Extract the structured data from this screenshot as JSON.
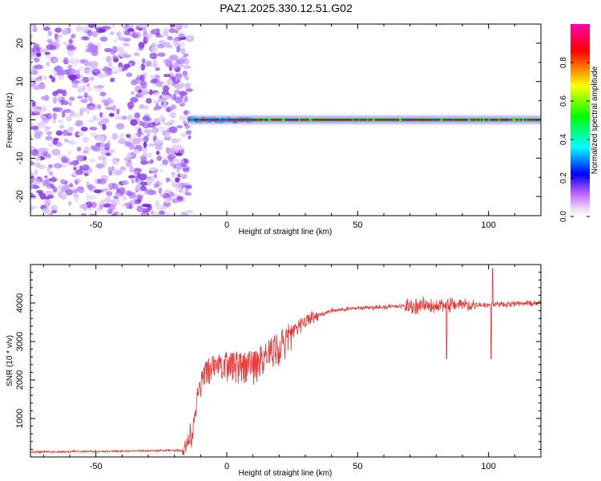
{
  "title": "PAZ1.2025.330.12.51.G02",
  "chart_data": [
    {
      "type": "heatmap",
      "name": "spectrogram",
      "xlabel": "Height of straight line (km)",
      "ylabel": "Frequency (Hz)",
      "xlim": [
        -75,
        120
      ],
      "ylim": [
        -25,
        25
      ],
      "xticks": [
        -50,
        0,
        50,
        100
      ],
      "yticks": [
        -20,
        -10,
        0,
        10,
        20
      ],
      "noise_region_x": [
        -75,
        -15
      ],
      "signal_start_x": -15,
      "signal_frequency": 0,
      "colorbar": {
        "label": "Normalized spectral amplitude",
        "range": [
          0,
          1
        ],
        "ticks": [
          0.0,
          0.2,
          0.4,
          0.6,
          0.8
        ],
        "colormap": [
          "#ffffff",
          "#ff00ff",
          "#0000ff",
          "#00ffff",
          "#00ff00",
          "#ffff00",
          "#ff0000",
          "#ff00aa"
        ]
      }
    },
    {
      "type": "line",
      "name": "snr",
      "xlabel": "Height of straight line (km)",
      "ylabel": "SNR (10 * v/v)",
      "xlim": [
        -75,
        120
      ],
      "ylim": [
        0,
        5000
      ],
      "xticks": [
        -50,
        0,
        50,
        100
      ],
      "yticks": [
        1000,
        2000,
        3000,
        4000
      ],
      "color": "#ee3333",
      "profile": [
        {
          "x": -75,
          "y": 130
        },
        {
          "x": -40,
          "y": 150
        },
        {
          "x": -17,
          "y": 170
        },
        {
          "x": -13,
          "y": 600
        },
        {
          "x": -11,
          "y": 1700
        },
        {
          "x": -8,
          "y": 2300
        },
        {
          "x": 0,
          "y": 2500
        },
        {
          "x": 10,
          "y": 2400
        },
        {
          "x": 15,
          "y": 2700
        },
        {
          "x": 20,
          "y": 2900
        },
        {
          "x": 25,
          "y": 3300
        },
        {
          "x": 30,
          "y": 3550
        },
        {
          "x": 40,
          "y": 3800
        },
        {
          "x": 50,
          "y": 3870
        },
        {
          "x": 60,
          "y": 3900
        },
        {
          "x": 70,
          "y": 3920
        },
        {
          "x": 85,
          "y": 3950
        },
        {
          "x": 100,
          "y": 3960
        },
        {
          "x": 120,
          "y": 4000
        }
      ],
      "features": [
        {
          "x": 84,
          "y": 2550
        },
        {
          "x": 101.5,
          "y": 4900
        },
        {
          "x": 101,
          "y": 2550
        }
      ]
    }
  ]
}
